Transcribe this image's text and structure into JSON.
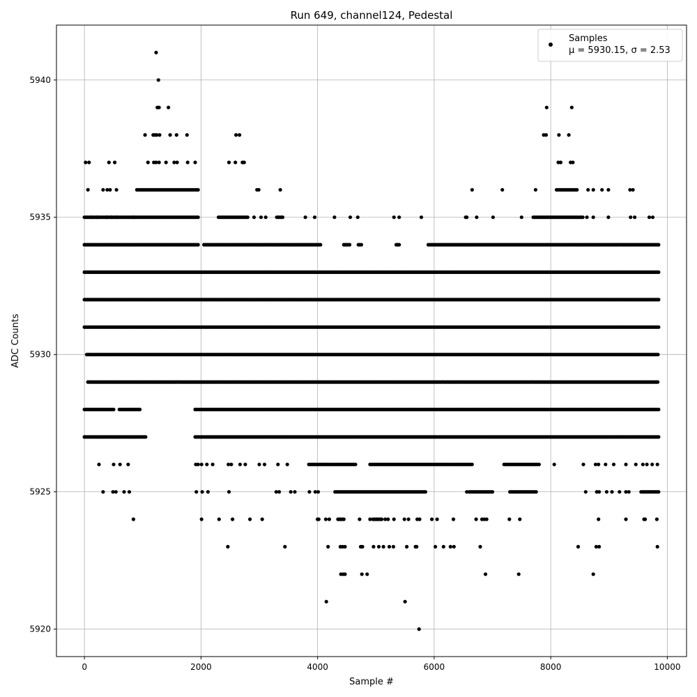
{
  "chart_data": {
    "type": "scatter",
    "title": "Run 649, channel124, Pedestal",
    "xlabel": "Sample #",
    "ylabel": "ADC Counts",
    "xlim": [
      -480,
      10330
    ],
    "ylim": [
      5919.0,
      5942.0
    ],
    "xticks": [
      0,
      2000,
      4000,
      6000,
      8000,
      10000
    ],
    "yticks": [
      5920,
      5925,
      5930,
      5935,
      5940
    ],
    "grid": true,
    "legend_position": "top-right",
    "marker_color": "#000000",
    "series": [
      {
        "name": "Samples",
        "stats_label": "μ = 5930.15, σ = 2.53",
        "x_range": [
          0,
          9850
        ],
        "bands": [
          {
            "y": 5931,
            "segments": [
              [
                0,
                9850
              ]
            ]
          },
          {
            "y": 5933,
            "segments": [
              [
                0,
                9850
              ]
            ]
          },
          {
            "y": 5929,
            "segments": [
              [
                60,
                9850
              ]
            ]
          },
          {
            "y": 5932,
            "segments": [
              [
                0,
                9850
              ]
            ]
          },
          {
            "y": 5930,
            "segments": [
              [
                40,
                9850
              ]
            ]
          },
          {
            "y": 5934,
            "segments": [
              [
                0,
                1950
              ],
              [
                2050,
                4050
              ],
              [
                4450,
                4550
              ],
              [
                4700,
                4750
              ],
              [
                5350,
                5400
              ],
              [
                5900,
                9850
              ]
            ]
          },
          {
            "y": 5928,
            "segments": [
              [
                0,
                500
              ],
              [
                600,
                950
              ],
              [
                1900,
                9850
              ]
            ]
          },
          {
            "y": 5927,
            "segments": [
              [
                0,
                1050
              ],
              [
                1900,
                9850
              ]
            ]
          },
          {
            "y": 5935,
            "segments": [
              [
                0,
                1950
              ],
              [
                2300,
                2800
              ],
              [
                3300,
                3400
              ],
              [
                7700,
                8550
              ]
            ]
          },
          {
            "y": 5926,
            "segments": [
              [
                3850,
                4650
              ],
              [
                4900,
                6650
              ],
              [
                7200,
                7800
              ]
            ]
          },
          {
            "y": 5925,
            "segments": [
              [
                4300,
                5850
              ],
              [
                6600,
                7000
              ],
              [
                7300,
                7750
              ],
              [
                9550,
                9850
              ]
            ]
          },
          {
            "y": 5936,
            "segments": [
              [
                900,
                1950
              ],
              [
                8100,
                8450
              ]
            ]
          },
          {
            "y": 5924,
            "segments": [
              [
                4350,
                4450
              ],
              [
                4950,
                5100
              ]
            ]
          }
        ],
        "points": [
          [
            1230,
            5941
          ],
          [
            1270,
            5940
          ],
          [
            1250,
            5939
          ],
          [
            1280,
            5939
          ],
          [
            1440,
            5939
          ],
          [
            7930,
            5939
          ],
          [
            8360,
            5939
          ],
          [
            1040,
            5938
          ],
          [
            1180,
            5938
          ],
          [
            1210,
            5938
          ],
          [
            1240,
            5938
          ],
          [
            1290,
            5938
          ],
          [
            1470,
            5938
          ],
          [
            1580,
            5938
          ],
          [
            1760,
            5938
          ],
          [
            2600,
            5938
          ],
          [
            2660,
            5938
          ],
          [
            7880,
            5938
          ],
          [
            7920,
            5938
          ],
          [
            8140,
            5938
          ],
          [
            8310,
            5938
          ],
          [
            20,
            5937
          ],
          [
            80,
            5937
          ],
          [
            420,
            5937
          ],
          [
            520,
            5937
          ],
          [
            1090,
            5937
          ],
          [
            1190,
            5937
          ],
          [
            1230,
            5937
          ],
          [
            1280,
            5937
          ],
          [
            1400,
            5937
          ],
          [
            1540,
            5937
          ],
          [
            1590,
            5937
          ],
          [
            1770,
            5937
          ],
          [
            1900,
            5937
          ],
          [
            2480,
            5937
          ],
          [
            2590,
            5937
          ],
          [
            2710,
            5937
          ],
          [
            2740,
            5937
          ],
          [
            8130,
            5937
          ],
          [
            8170,
            5937
          ],
          [
            8340,
            5937
          ],
          [
            8380,
            5937
          ],
          [
            60,
            5936
          ],
          [
            320,
            5936
          ],
          [
            390,
            5936
          ],
          [
            440,
            5936
          ],
          [
            550,
            5936
          ],
          [
            2960,
            5936
          ],
          [
            2990,
            5936
          ],
          [
            3360,
            5936
          ],
          [
            6650,
            5936
          ],
          [
            7170,
            5936
          ],
          [
            7740,
            5936
          ],
          [
            8640,
            5936
          ],
          [
            8730,
            5936
          ],
          [
            8880,
            5936
          ],
          [
            8990,
            5936
          ],
          [
            9360,
            5936
          ],
          [
            9410,
            5936
          ],
          [
            120,
            5935
          ],
          [
            220,
            5935
          ],
          [
            380,
            5935
          ],
          [
            460,
            5935
          ],
          [
            560,
            5935
          ],
          [
            840,
            5935
          ],
          [
            2910,
            5935
          ],
          [
            3030,
            5935
          ],
          [
            3110,
            5935
          ],
          [
            3790,
            5935
          ],
          [
            3950,
            5935
          ],
          [
            4290,
            5935
          ],
          [
            4560,
            5935
          ],
          [
            4690,
            5935
          ],
          [
            5310,
            5935
          ],
          [
            5400,
            5935
          ],
          [
            5780,
            5935
          ],
          [
            6540,
            5935
          ],
          [
            6560,
            5935
          ],
          [
            6730,
            5935
          ],
          [
            7010,
            5935
          ],
          [
            7500,
            5935
          ],
          [
            8620,
            5935
          ],
          [
            8730,
            5935
          ],
          [
            8990,
            5935
          ],
          [
            9370,
            5935
          ],
          [
            9440,
            5935
          ],
          [
            9690,
            5935
          ],
          [
            9750,
            5935
          ],
          [
            3000,
            5926
          ],
          [
            3090,
            5926
          ],
          [
            3320,
            5926
          ],
          [
            3480,
            5926
          ],
          [
            1910,
            5926
          ],
          [
            1950,
            5926
          ],
          [
            2010,
            5926
          ],
          [
            2100,
            5926
          ],
          [
            2200,
            5926
          ],
          [
            2470,
            5926
          ],
          [
            2520,
            5926
          ],
          [
            2670,
            5926
          ],
          [
            2760,
            5926
          ],
          [
            250,
            5926
          ],
          [
            500,
            5926
          ],
          [
            610,
            5926
          ],
          [
            750,
            5926
          ],
          [
            8060,
            5926
          ],
          [
            8560,
            5926
          ],
          [
            8770,
            5926
          ],
          [
            8820,
            5926
          ],
          [
            8940,
            5926
          ],
          [
            9080,
            5926
          ],
          [
            9290,
            5926
          ],
          [
            9460,
            5926
          ],
          [
            9580,
            5926
          ],
          [
            9650,
            5926
          ],
          [
            9740,
            5926
          ],
          [
            9830,
            5926
          ],
          [
            320,
            5925
          ],
          [
            490,
            5925
          ],
          [
            540,
            5925
          ],
          [
            680,
            5925
          ],
          [
            770,
            5925
          ],
          [
            1920,
            5925
          ],
          [
            2020,
            5925
          ],
          [
            2120,
            5925
          ],
          [
            2480,
            5925
          ],
          [
            3290,
            5925
          ],
          [
            3340,
            5925
          ],
          [
            3540,
            5925
          ],
          [
            3610,
            5925
          ],
          [
            3860,
            5925
          ],
          [
            3960,
            5925
          ],
          [
            4010,
            5925
          ],
          [
            6560,
            5925
          ],
          [
            8600,
            5925
          ],
          [
            8790,
            5925
          ],
          [
            8830,
            5925
          ],
          [
            8960,
            5925
          ],
          [
            9050,
            5925
          ],
          [
            9180,
            5925
          ],
          [
            9290,
            5925
          ],
          [
            9340,
            5925
          ],
          [
            840,
            5924
          ],
          [
            2010,
            5924
          ],
          [
            2310,
            5924
          ],
          [
            2540,
            5924
          ],
          [
            2840,
            5924
          ],
          [
            3050,
            5924
          ],
          [
            4000,
            5924
          ],
          [
            4020,
            5924
          ],
          [
            4140,
            5924
          ],
          [
            4200,
            5924
          ],
          [
            4720,
            5924
          ],
          [
            4900,
            5924
          ],
          [
            5160,
            5924
          ],
          [
            5210,
            5924
          ],
          [
            5310,
            5924
          ],
          [
            5490,
            5924
          ],
          [
            5560,
            5924
          ],
          [
            5710,
            5924
          ],
          [
            5750,
            5924
          ],
          [
            5960,
            5924
          ],
          [
            6050,
            5924
          ],
          [
            6330,
            5924
          ],
          [
            6720,
            5924
          ],
          [
            6820,
            5924
          ],
          [
            6860,
            5924
          ],
          [
            6900,
            5924
          ],
          [
            7290,
            5924
          ],
          [
            7470,
            5924
          ],
          [
            8820,
            5924
          ],
          [
            9290,
            5924
          ],
          [
            9600,
            5924
          ],
          [
            9620,
            5924
          ],
          [
            9820,
            5924
          ],
          [
            2460,
            5923
          ],
          [
            3440,
            5923
          ],
          [
            4180,
            5923
          ],
          [
            4390,
            5923
          ],
          [
            4430,
            5923
          ],
          [
            4470,
            5923
          ],
          [
            4740,
            5923
          ],
          [
            4770,
            5923
          ],
          [
            4960,
            5923
          ],
          [
            5050,
            5923
          ],
          [
            5130,
            5923
          ],
          [
            5230,
            5923
          ],
          [
            5300,
            5923
          ],
          [
            5530,
            5923
          ],
          [
            5680,
            5923
          ],
          [
            5700,
            5923
          ],
          [
            6020,
            5923
          ],
          [
            6160,
            5923
          ],
          [
            6280,
            5923
          ],
          [
            6340,
            5923
          ],
          [
            6790,
            5923
          ],
          [
            8470,
            5923
          ],
          [
            8780,
            5923
          ],
          [
            8830,
            5923
          ],
          [
            9830,
            5923
          ],
          [
            4400,
            5922
          ],
          [
            4440,
            5922
          ],
          [
            4470,
            5922
          ],
          [
            4760,
            5922
          ],
          [
            4850,
            5922
          ],
          [
            6880,
            5922
          ],
          [
            7450,
            5922
          ],
          [
            8730,
            5922
          ],
          [
            4150,
            5921
          ],
          [
            5500,
            5921
          ],
          [
            5740,
            5920
          ]
        ]
      }
    ]
  }
}
